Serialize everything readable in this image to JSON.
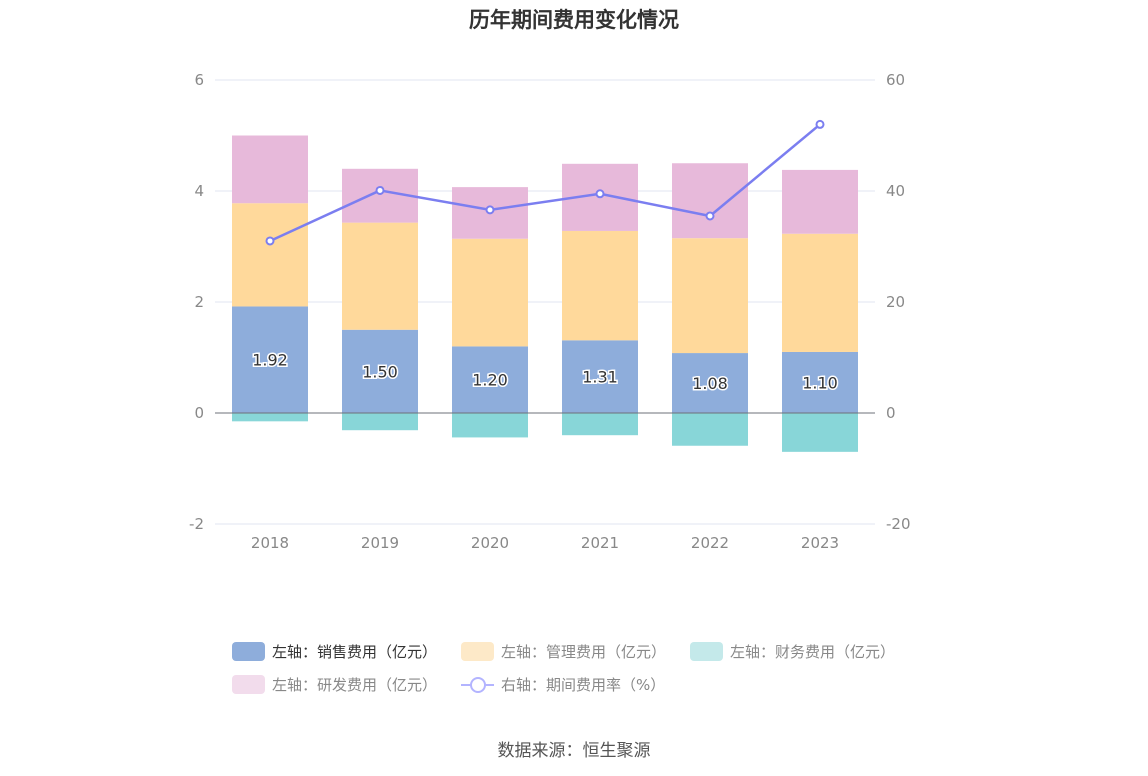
{
  "chart_data": {
    "type": "bar",
    "title": "历年期间费用变化情况",
    "categories": [
      "2018",
      "2019",
      "2020",
      "2021",
      "2022",
      "2023"
    ],
    "stacked": true,
    "left_axis": {
      "ylim": [
        -2,
        6
      ],
      "ticks": [
        "-2",
        "0",
        "2",
        "4",
        "6"
      ]
    },
    "right_axis": {
      "ylim": [
        -20,
        60
      ],
      "ticks": [
        "-20",
        "0",
        "20",
        "40",
        "60"
      ]
    },
    "grid": true,
    "series": [
      {
        "name": "左轴：销售费用（亿元）",
        "type": "bar",
        "axis": "left",
        "color": "#8eaddb",
        "values": [
          1.92,
          1.5,
          1.2,
          1.31,
          1.08,
          1.1
        ],
        "data_labels": [
          "1.92",
          "1.50",
          "1.20",
          "1.31",
          "1.08",
          "1.10"
        ]
      },
      {
        "name": "左轴：管理费用（亿元）",
        "type": "bar",
        "axis": "left",
        "color": "#ffd99b",
        "values": [
          1.86,
          1.93,
          1.94,
          1.97,
          2.07,
          2.13
        ]
      },
      {
        "name": "左轴：财务费用（亿元）",
        "type": "bar",
        "axis": "left",
        "color": "#88d6d8",
        "values": [
          -0.15,
          -0.31,
          -0.44,
          -0.4,
          -0.59,
          -0.7
        ]
      },
      {
        "name": "左轴：研发费用（亿元）",
        "type": "bar",
        "axis": "left",
        "color": "#e7b9da",
        "values": [
          1.22,
          0.97,
          0.93,
          1.21,
          1.35,
          1.15
        ]
      },
      {
        "name": "右轴：期间费用率（%）",
        "type": "line",
        "axis": "right",
        "color": "#7b7ef0",
        "values": [
          31.0,
          40.1,
          36.6,
          39.5,
          35.5,
          52.0
        ]
      }
    ],
    "legend_position": "bottom"
  },
  "legend": {
    "row1": [
      {
        "label": "左轴：销售费用（亿元）",
        "color": "#8eaddb",
        "active": true
      },
      {
        "label": "左轴：管理费用（亿元）",
        "color": "#fde9c8"
      },
      {
        "label": "左轴：财务费用（亿元）",
        "color": "#c4e9ea"
      }
    ],
    "row2_bar": {
      "label": "左轴：研发费用（亿元）",
      "color": "#f2dcec"
    },
    "row2_line": {
      "label": "右轴：期间费用率（%）"
    }
  },
  "source": "数据来源：恒生聚源"
}
